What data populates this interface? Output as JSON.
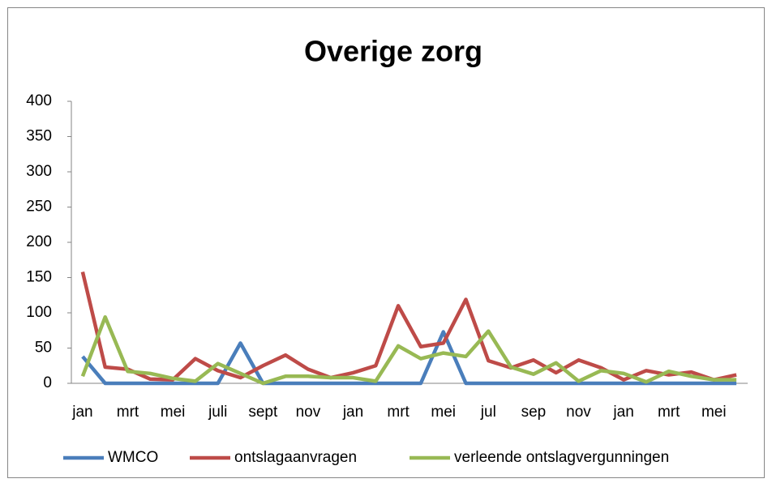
{
  "chart_data": {
    "type": "line",
    "title": "Overige zorg",
    "categories": [
      "jan",
      null,
      "mrt",
      null,
      "mei",
      null,
      "juli",
      null,
      "sept",
      null,
      "nov",
      null,
      "jan",
      null,
      "mrt",
      null,
      "mei",
      null,
      "jul",
      null,
      "sep",
      null,
      "nov",
      null,
      "jan",
      null,
      "mrt",
      null,
      "mei",
      null
    ],
    "series": [
      {
        "name": "WMCO",
        "color": "#4a7ebb",
        "values": [
          38,
          0,
          0,
          0,
          0,
          0,
          0,
          57,
          0,
          0,
          0,
          0,
          0,
          0,
          0,
          0,
          73,
          0,
          0,
          0,
          0,
          0,
          0,
          0,
          0,
          0,
          0,
          0,
          0,
          0
        ]
      },
      {
        "name": "ontslagaanvragen",
        "color": "#be4b48",
        "values": [
          158,
          23,
          20,
          6,
          5,
          35,
          18,
          8,
          25,
          40,
          20,
          8,
          15,
          25,
          110,
          52,
          57,
          119,
          32,
          22,
          33,
          15,
          33,
          22,
          5,
          18,
          12,
          16,
          5,
          12
        ]
      },
      {
        "name": "verleende ontslagvergunningen",
        "color": "#98b954",
        "values": [
          10,
          94,
          17,
          14,
          7,
          3,
          28,
          14,
          0,
          10,
          10,
          8,
          8,
          3,
          53,
          35,
          43,
          38,
          74,
          23,
          13,
          29,
          3,
          18,
          14,
          2,
          17,
          10,
          5,
          5
        ]
      }
    ],
    "ylim": [
      0,
      400
    ],
    "yticks": [
      0,
      50,
      100,
      150,
      200,
      250,
      300,
      350,
      400
    ],
    "grid": false,
    "legend": "bottom"
  }
}
